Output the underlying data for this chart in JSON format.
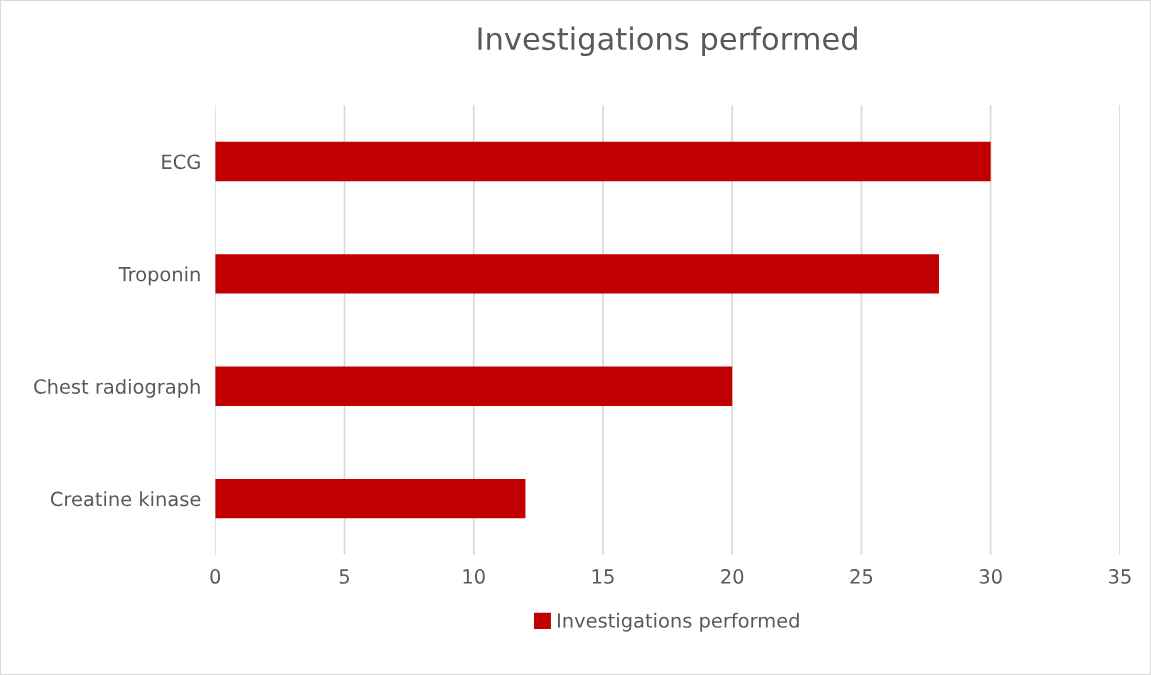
{
  "chart_data": {
    "type": "bar",
    "orientation": "horizontal",
    "title": "Investigations performed",
    "categories": [
      "ECG",
      "Troponin",
      "Chest radiograph",
      "Creatine kinase"
    ],
    "series": [
      {
        "name": "Investigations performed",
        "color": "#c00000",
        "values": [
          30,
          28,
          20,
          12
        ]
      }
    ],
    "xlim": [
      0,
      35
    ],
    "xticks": [
      0,
      5,
      10,
      15,
      20,
      25,
      30,
      35
    ],
    "grid": "x",
    "legend": "bottom"
  }
}
